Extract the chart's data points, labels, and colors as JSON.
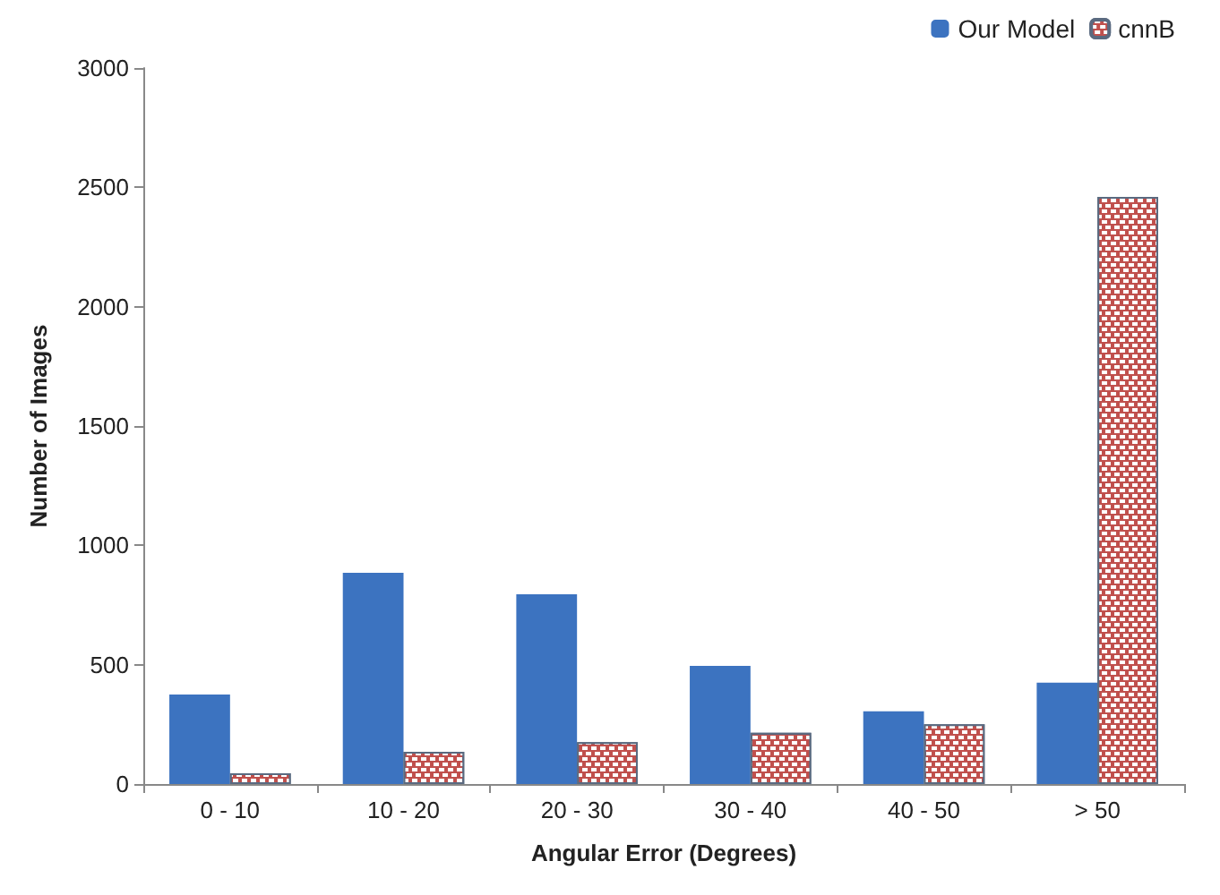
{
  "chart_data": {
    "type": "bar",
    "xlabel": "Angular Error (Degrees)",
    "ylabel": "Number of Images",
    "categories": [
      "0 - 10",
      "10 - 20",
      "20 - 30",
      "30 - 40",
      "40 - 50",
      "> 50"
    ],
    "series": [
      {
        "name": "Our Model",
        "color": "#3c73c0",
        "values": [
          375,
          885,
          795,
          495,
          305,
          425
        ]
      },
      {
        "name": "cnnB",
        "color": "#c0504d",
        "values": [
          45,
          135,
          175,
          215,
          250,
          2460
        ]
      }
    ],
    "ylim": [
      0,
      3000
    ],
    "yticks": [
      0,
      500,
      1000,
      1500,
      2000,
      2500,
      3000
    ],
    "grid": false,
    "legend": "top right"
  }
}
